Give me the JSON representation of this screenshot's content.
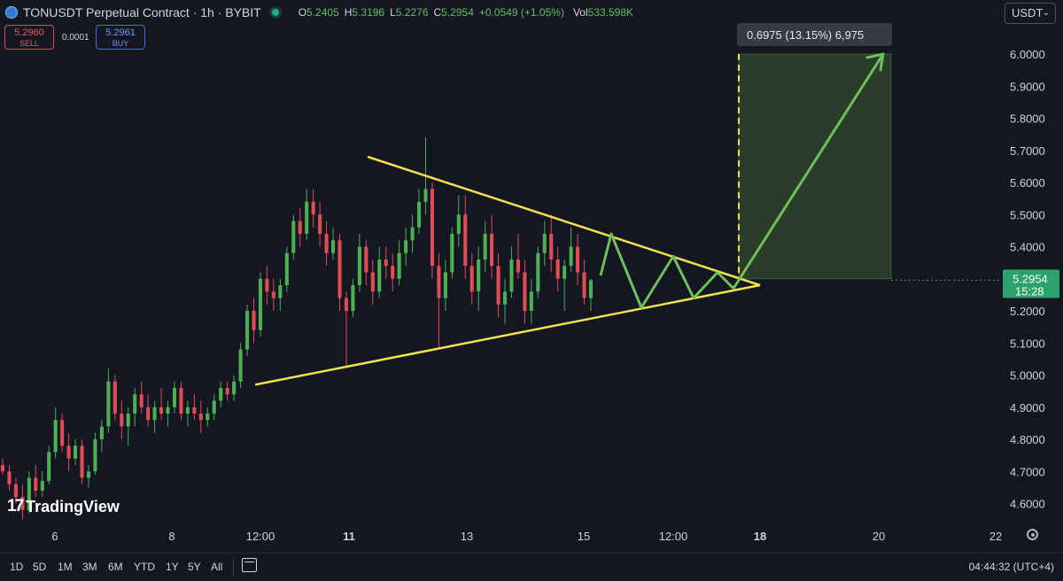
{
  "header": {
    "symbol_title": "TONUSDT Perpetual Contract · 1h · BYBIT",
    "ohlc": [
      {
        "k": "O",
        "v": "5.2405"
      },
      {
        "k": "H",
        "v": "5.3196"
      },
      {
        "k": "L",
        "v": "5.2276"
      },
      {
        "k": "C",
        "v": "5.2954"
      }
    ],
    "change": "+0.0549 (+1.05%)",
    "vol_label": "Vol",
    "vol_value": "533.598K",
    "sell_price": "5.2960",
    "sell_label": "SELL",
    "spread": "0.0001",
    "buy_price": "5.2961",
    "buy_label": "BUY",
    "currency": "USDT",
    "brand": "TradingView"
  },
  "chart_data": {
    "type": "candlestick",
    "ylim": [
      4.55,
      6.1
    ],
    "y_ticks": [
      "6.0000",
      "5.9000",
      "5.8000",
      "5.7000",
      "5.6000",
      "5.5000",
      "5.4000",
      "5.3000",
      "5.2000",
      "5.1000",
      "5.0000",
      "4.9000",
      "4.8000",
      "4.7000",
      "4.6000"
    ],
    "x_ticks": [
      "6",
      "8",
      "12:00",
      "11",
      "13",
      "15",
      "12:00",
      "18",
      "20",
      "22"
    ],
    "x_ticks_bold": [
      "11",
      "18"
    ],
    "price_label": {
      "value": "5.2954",
      "countdown": "15:28"
    },
    "price_color": "#2aa26a",
    "measure_label": "0.6975 (13.15%) 6,975",
    "colors": {
      "up": "#4caf50",
      "down": "#e04c55",
      "trendline": "#f2e14c",
      "projection": "#6fbf5a",
      "target_zone": "#2a3d2b"
    },
    "triangle": {
      "upper": [
        [
          "2024-07-11 08:00",
          5.68
        ],
        [
          "2024-07-17 00:00",
          5.28
        ]
      ],
      "lower": [
        [
          "2024-07-09 00:00",
          4.97
        ],
        [
          "2024-07-17 00:00",
          5.28
        ]
      ]
    },
    "target_zone": {
      "from": 5.3,
      "to": 6.0
    },
    "projection_path": [
      5.31,
      5.44,
      5.21,
      5.37,
      5.24,
      5.32,
      5.27,
      6.0
    ],
    "candles_sampled_note": "",
    "candles": [
      [
        4.72,
        4.74,
        4.69,
        4.7
      ],
      [
        4.7,
        4.72,
        4.64,
        4.66
      ],
      [
        4.66,
        4.68,
        4.6,
        4.62
      ],
      [
        4.62,
        4.66,
        4.55,
        4.58
      ],
      [
        4.58,
        4.7,
        4.57,
        4.68
      ],
      [
        4.68,
        4.72,
        4.62,
        4.64
      ],
      [
        4.64,
        4.7,
        4.62,
        4.67
      ],
      [
        4.67,
        4.78,
        4.66,
        4.76
      ],
      [
        4.76,
        4.9,
        4.74,
        4.86
      ],
      [
        4.86,
        4.88,
        4.76,
        4.78
      ],
      [
        4.78,
        4.82,
        4.7,
        4.74
      ],
      [
        4.74,
        4.8,
        4.72,
        4.78
      ],
      [
        4.78,
        4.8,
        4.66,
        4.68
      ],
      [
        4.68,
        4.72,
        4.65,
        4.7
      ],
      [
        4.7,
        4.82,
        4.69,
        4.8
      ],
      [
        4.8,
        4.86,
        4.76,
        4.84
      ],
      [
        4.84,
        5.02,
        4.82,
        4.98
      ],
      [
        4.98,
        5.0,
        4.86,
        4.88
      ],
      [
        4.88,
        4.92,
        4.8,
        4.84
      ],
      [
        4.84,
        4.9,
        4.78,
        4.88
      ],
      [
        4.88,
        4.96,
        4.84,
        4.94
      ],
      [
        4.94,
        4.98,
        4.88,
        4.9
      ],
      [
        4.9,
        4.94,
        4.84,
        4.86
      ],
      [
        4.86,
        4.92,
        4.82,
        4.9
      ],
      [
        4.9,
        4.96,
        4.86,
        4.88
      ],
      [
        4.88,
        4.92,
        4.84,
        4.9
      ],
      [
        4.9,
        4.98,
        4.88,
        4.96
      ],
      [
        4.96,
        4.98,
        4.86,
        4.88
      ],
      [
        4.88,
        4.92,
        4.84,
        4.9
      ],
      [
        4.9,
        4.94,
        4.86,
        4.88
      ],
      [
        4.88,
        4.92,
        4.82,
        4.86
      ],
      [
        4.86,
        4.9,
        4.84,
        4.88
      ],
      [
        4.88,
        4.94,
        4.86,
        4.92
      ],
      [
        4.92,
        4.98,
        4.9,
        4.96
      ],
      [
        4.96,
        4.98,
        4.92,
        4.94
      ],
      [
        4.94,
        5.0,
        4.92,
        4.98
      ],
      [
        4.98,
        5.1,
        4.96,
        5.08
      ],
      [
        5.08,
        5.22,
        5.06,
        5.2
      ],
      [
        5.2,
        5.24,
        5.1,
        5.14
      ],
      [
        5.14,
        5.32,
        5.12,
        5.3
      ],
      [
        5.3,
        5.34,
        5.22,
        5.26
      ],
      [
        5.26,
        5.3,
        5.2,
        5.24
      ],
      [
        5.24,
        5.3,
        5.2,
        5.28
      ],
      [
        5.28,
        5.4,
        5.26,
        5.38
      ],
      [
        5.38,
        5.5,
        5.36,
        5.48
      ],
      [
        5.48,
        5.52,
        5.4,
        5.44
      ],
      [
        5.44,
        5.58,
        5.42,
        5.54
      ],
      [
        5.54,
        5.58,
        5.46,
        5.5
      ],
      [
        5.5,
        5.54,
        5.4,
        5.44
      ],
      [
        5.44,
        5.48,
        5.34,
        5.38
      ],
      [
        5.38,
        5.46,
        5.36,
        5.42
      ],
      [
        5.42,
        5.44,
        5.2,
        5.24
      ],
      [
        5.24,
        5.26,
        5.02,
        5.2
      ],
      [
        5.2,
        5.3,
        5.18,
        5.28
      ],
      [
        5.28,
        5.44,
        5.26,
        5.4
      ],
      [
        5.4,
        5.42,
        5.28,
        5.32
      ],
      [
        5.32,
        5.36,
        5.22,
        5.26
      ],
      [
        5.26,
        5.4,
        5.24,
        5.36
      ],
      [
        5.36,
        5.4,
        5.3,
        5.34
      ],
      [
        5.34,
        5.38,
        5.26,
        5.3
      ],
      [
        5.3,
        5.42,
        5.28,
        5.38
      ],
      [
        5.38,
        5.46,
        5.34,
        5.42
      ],
      [
        5.42,
        5.5,
        5.38,
        5.46
      ],
      [
        5.46,
        5.58,
        5.44,
        5.54
      ],
      [
        5.54,
        5.74,
        5.5,
        5.58
      ],
      [
        5.58,
        5.6,
        5.3,
        5.34
      ],
      [
        5.34,
        5.38,
        5.08,
        5.24
      ],
      [
        5.24,
        5.36,
        5.2,
        5.32
      ],
      [
        5.32,
        5.46,
        5.3,
        5.44
      ],
      [
        5.44,
        5.56,
        5.4,
        5.5
      ],
      [
        5.5,
        5.56,
        5.3,
        5.34
      ],
      [
        5.34,
        5.38,
        5.22,
        5.26
      ],
      [
        5.26,
        5.4,
        5.2,
        5.36
      ],
      [
        5.36,
        5.48,
        5.32,
        5.44
      ],
      [
        5.44,
        5.5,
        5.3,
        5.34
      ],
      [
        5.34,
        5.38,
        5.18,
        5.22
      ],
      [
        5.22,
        5.3,
        5.16,
        5.26
      ],
      [
        5.26,
        5.4,
        5.24,
        5.36
      ],
      [
        5.36,
        5.44,
        5.3,
        5.32
      ],
      [
        5.32,
        5.36,
        5.16,
        5.2
      ],
      [
        5.2,
        5.3,
        5.16,
        5.26
      ],
      [
        5.26,
        5.4,
        5.24,
        5.38
      ],
      [
        5.38,
        5.48,
        5.34,
        5.44
      ],
      [
        5.44,
        5.5,
        5.32,
        5.36
      ],
      [
        5.36,
        5.4,
        5.26,
        5.3
      ],
      [
        5.3,
        5.36,
        5.2,
        5.34
      ],
      [
        5.34,
        5.46,
        5.32,
        5.4
      ],
      [
        5.4,
        5.44,
        5.28,
        5.32
      ],
      [
        5.32,
        5.36,
        5.22,
        5.24
      ],
      [
        5.24,
        5.3,
        5.2,
        5.2954
      ]
    ]
  },
  "timeframes": [
    "1D",
    "5D",
    "1M",
    "3M",
    "6M",
    "YTD",
    "1Y",
    "5Y",
    "All"
  ],
  "clock": "04:44:32 (UTC+4)"
}
